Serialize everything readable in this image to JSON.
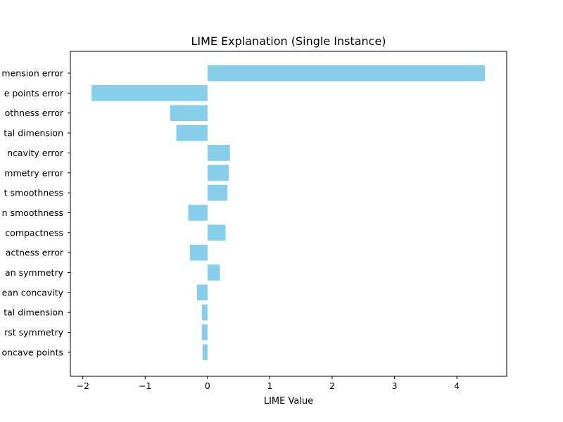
{
  "chart_data": {
    "type": "bar",
    "orientation": "horizontal",
    "title": "LIME Explanation (Single Instance)",
    "xlabel": "LIME Value",
    "ylabel": "",
    "xlim": [
      -2.2,
      4.8
    ],
    "xticks": [
      {
        "value": -2,
        "label": "−2"
      },
      {
        "value": -1,
        "label": "−1"
      },
      {
        "value": 0,
        "label": "0"
      },
      {
        "value": 1,
        "label": "1"
      },
      {
        "value": 2,
        "label": "2"
      },
      {
        "value": 3,
        "label": "3"
      },
      {
        "value": 4,
        "label": "4"
      }
    ],
    "grid": false,
    "bar_color": "#87ceeb",
    "categories": [
      "mension error",
      "e points error",
      "othness error",
      "tal dimension",
      "ncavity error",
      "mmetry error",
      "t smoothness",
      "n smoothness",
      "compactness",
      "actness error",
      "an symmetry",
      "ean concavity",
      "tal dimension",
      "rst symmetry",
      "oncave points"
    ],
    "values": [
      4.45,
      -1.86,
      -0.6,
      -0.5,
      0.36,
      0.34,
      0.32,
      -0.31,
      0.29,
      -0.28,
      0.2,
      -0.17,
      -0.09,
      -0.09,
      -0.08
    ]
  }
}
